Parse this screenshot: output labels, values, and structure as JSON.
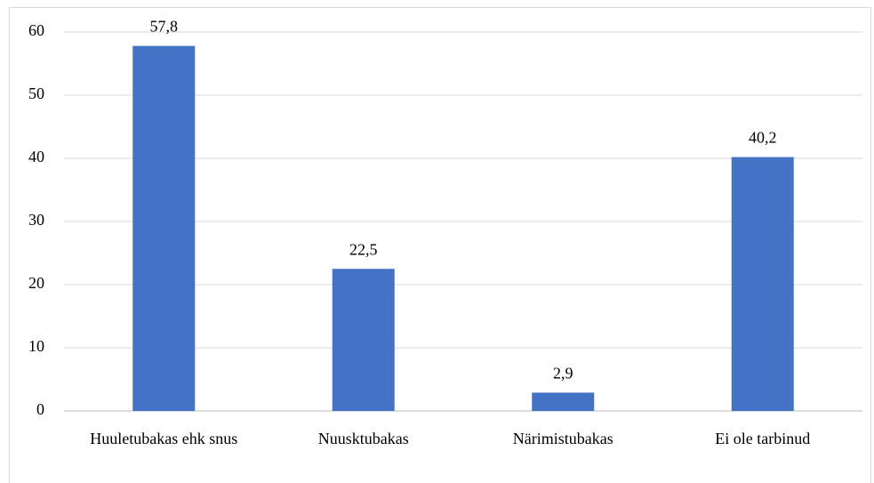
{
  "chart_data": {
    "type": "bar",
    "categories": [
      "Huuletubakas ehk snus",
      "Nuusktubakas",
      "Närimistubakas",
      "Ei ole tarbinud"
    ],
    "values": [
      57.8,
      22.5,
      2.9,
      40.2
    ],
    "value_labels": [
      "57,8",
      "22,5",
      "2,9",
      "40,2"
    ],
    "color": "#4472c4",
    "ylim": [
      0,
      60
    ],
    "yticks": [
      0,
      10,
      20,
      30,
      40,
      50,
      60
    ],
    "grid": true
  }
}
